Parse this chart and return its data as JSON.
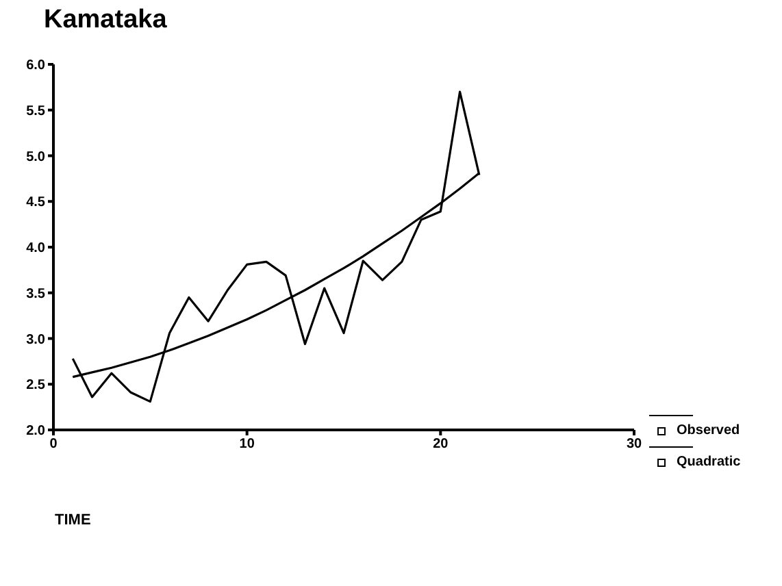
{
  "chart_data": {
    "type": "line",
    "title": "Kamataka",
    "xlabel": "TIME",
    "x": [
      1,
      2,
      3,
      4,
      5,
      6,
      7,
      8,
      9,
      10,
      11,
      12,
      13,
      14,
      15,
      16,
      17,
      18,
      19,
      20,
      21,
      22
    ],
    "series": [
      {
        "name": "Observed",
        "color": "#000000",
        "values": [
          2.78,
          2.36,
          2.62,
          2.41,
          2.31,
          3.06,
          3.45,
          3.19,
          3.53,
          3.81,
          3.84,
          3.69,
          2.94,
          3.55,
          3.06,
          3.85,
          3.64,
          3.84,
          4.3,
          4.39,
          5.7,
          4.79
        ]
      },
      {
        "name": "Quadratic",
        "color": "#000000",
        "values": [
          2.58,
          2.63,
          2.68,
          2.74,
          2.8,
          2.87,
          2.95,
          3.03,
          3.12,
          3.21,
          3.31,
          3.42,
          3.53,
          3.65,
          3.77,
          3.9,
          4.04,
          4.18,
          4.33,
          4.48,
          4.64,
          4.81
        ]
      }
    ],
    "xlim": [
      0,
      30
    ],
    "xticks": [
      0,
      10,
      20,
      30
    ],
    "ylim": [
      2,
      6
    ],
    "yticks": [
      {
        "value": 2,
        "label": "2.0"
      },
      {
        "value": 2.5,
        "label": "2.5"
      },
      {
        "value": 3,
        "label": "3.0"
      },
      {
        "value": 3.5,
        "label": "3.5"
      },
      {
        "value": 4,
        "label": "4.0"
      },
      {
        "value": 4.5,
        "label": "4.5"
      },
      {
        "value": 5,
        "label": "5.0"
      },
      {
        "value": 5.5,
        "label": "5.5"
      },
      {
        "value": 6,
        "label": "6.0"
      }
    ],
    "grid": false,
    "legend": "bottom right"
  }
}
